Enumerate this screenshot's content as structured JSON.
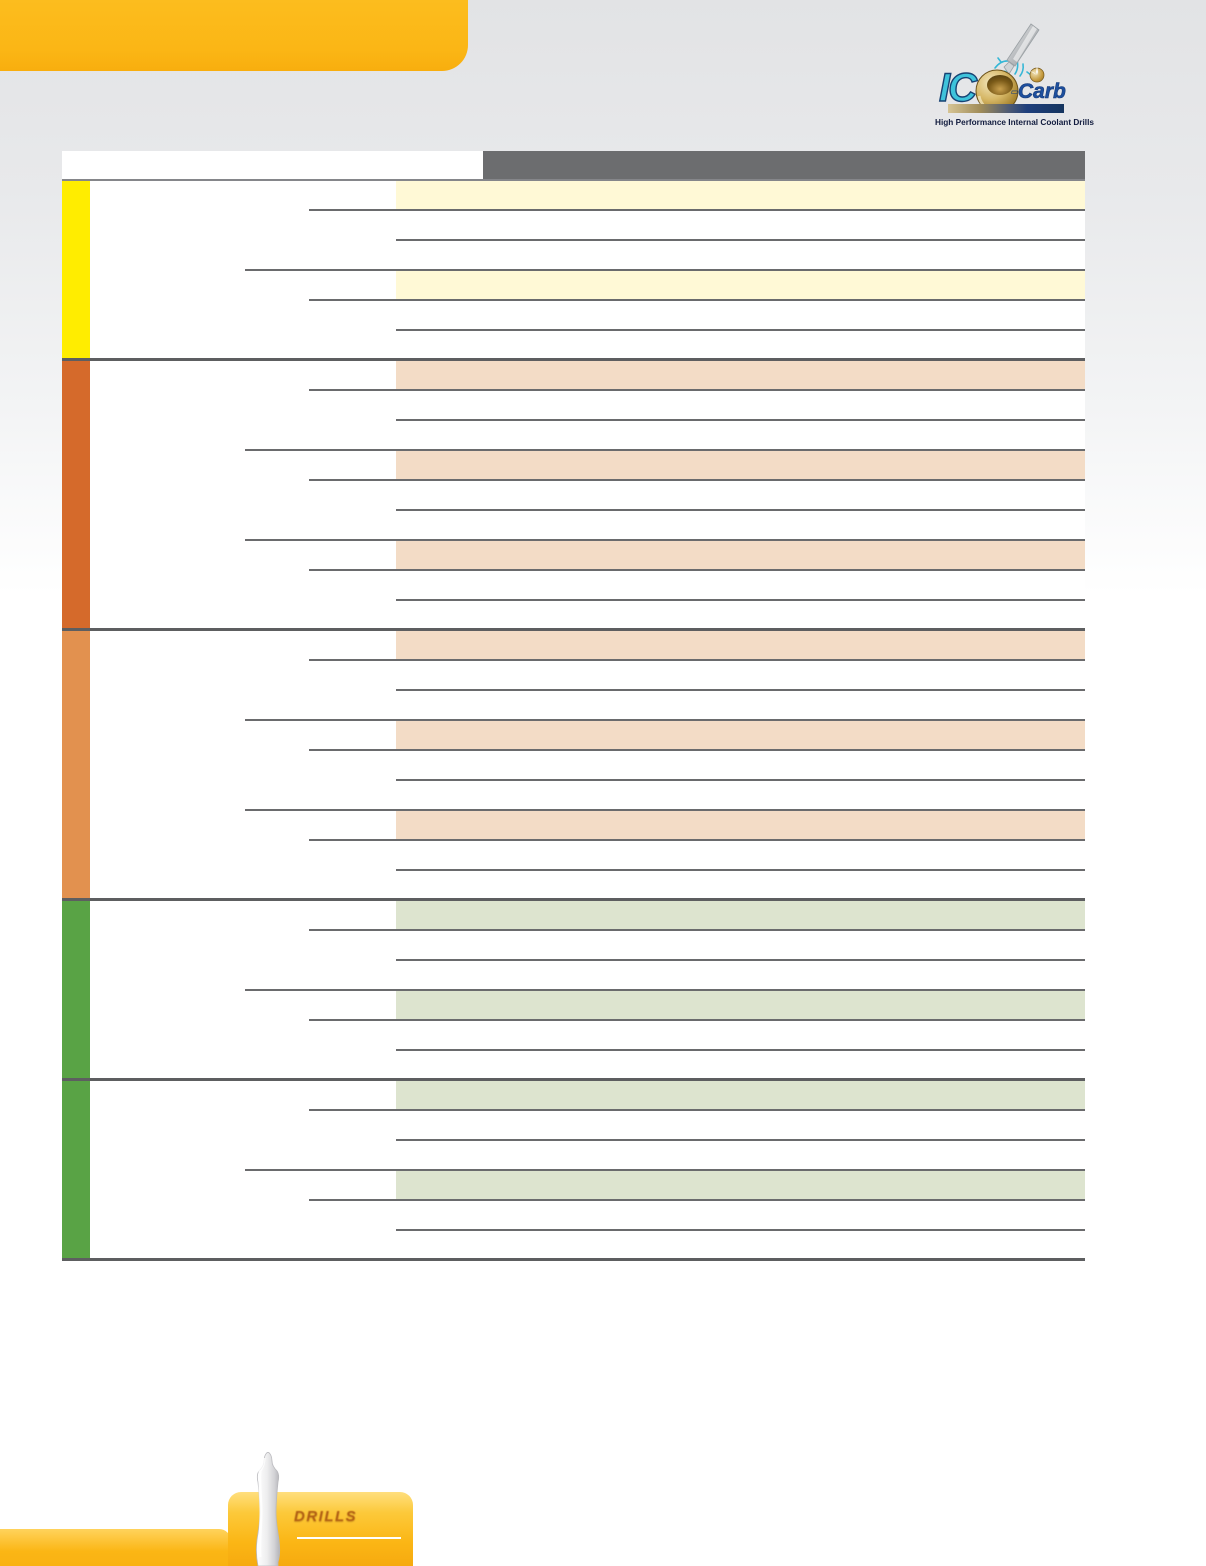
{
  "brand": {
    "name_prefix": "IC",
    "hyphen": "-",
    "name_suffix": "Carb",
    "tagline": "High Performance Internal Coolant Drills",
    "colors": {
      "ic_text": "#3EC3DB",
      "carb_text": "#1D4F9E",
      "gold": "#C9A44B"
    }
  },
  "header": {
    "band_color": "#FBB615"
  },
  "table": {
    "header_bar_color": "#6C6D6F",
    "grid_line_color": "#6A6B6D",
    "sections": [
      {
        "id": "yellow",
        "bar_color": "#FFED00",
        "row_color": "#FFF9D6",
        "subgroups": 2
      },
      {
        "id": "dark-orange",
        "bar_color": "#D56A2B",
        "row_color": "#F3DCC6",
        "subgroups": 3
      },
      {
        "id": "light-orange",
        "bar_color": "#E2914F",
        "row_color": "#F3DCC6",
        "subgroups": 3
      },
      {
        "id": "green-1",
        "bar_color": "#59A345",
        "row_color": "#DDE4CF",
        "subgroups": 2
      },
      {
        "id": "green-2",
        "bar_color": "#59A345",
        "row_color": "#DDE4CF",
        "subgroups": 2
      }
    ]
  },
  "footer": {
    "tab_label": "DRILLS",
    "band_color": "#FBB615"
  }
}
